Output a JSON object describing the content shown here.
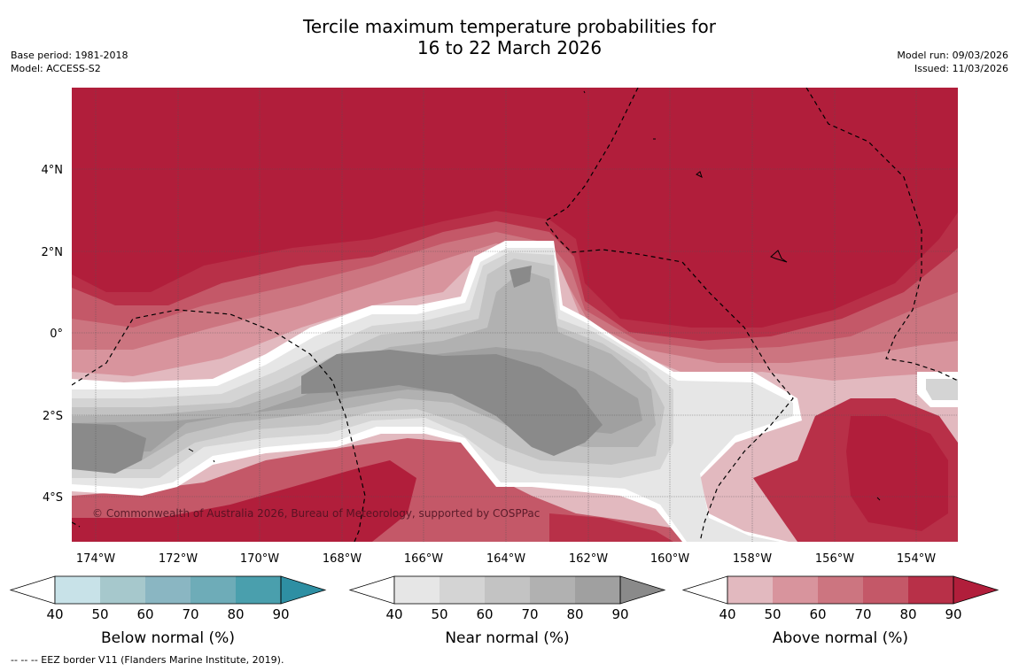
{
  "header": {
    "title_line1": "Tercile maximum temperature probabilities for",
    "title_line2": "16 to 22 March 2026",
    "base_period": "Base period: 1981-2018",
    "model": "Model: ACCESS-S2",
    "model_run": "Model run: 09/03/2026",
    "issued": "Issued: 11/03/2026"
  },
  "map": {
    "copyright": "© Commonwealth of Australia 2026, Bureau of Meteorology, supported by COSPPac",
    "lon_labels": [
      "174°W",
      "172°W",
      "170°W",
      "168°W",
      "166°W",
      "164°W",
      "162°W",
      "160°W",
      "158°W",
      "156°W",
      "154°W"
    ],
    "lat_labels": [
      "4°N",
      "2°N",
      "0°",
      "2°S",
      "4°S"
    ],
    "colors": {
      "above": [
        "#e2b9bf",
        "#d8949d",
        "#cc7580",
        "#c45868",
        "#b83048",
        "#b11e3b"
      ],
      "near": [
        "#e6e6e6",
        "#d4d4d4",
        "#c3c3c3",
        "#b1b1b1",
        "#a0a0a0",
        "#8a8a8a"
      ],
      "below": [
        "#c8e2e8",
        "#a6c8cc",
        "#8ab6c2",
        "#6eacb8",
        "#4a9fad",
        "#2e8fa3"
      ]
    }
  },
  "colorbars": [
    {
      "label": "Below normal (%)",
      "ticks": [
        "40",
        "50",
        "60",
        "70",
        "80",
        "90"
      ]
    },
    {
      "label": "Near normal (%)",
      "ticks": [
        "40",
        "50",
        "60",
        "70",
        "80",
        "90"
      ]
    },
    {
      "label": "Above normal (%)",
      "ticks": [
        "40",
        "50",
        "60",
        "70",
        "80",
        "90"
      ]
    }
  ],
  "footer": "--  --  -- EEZ border V11 (Flanders Marine Institute, 2019)."
}
